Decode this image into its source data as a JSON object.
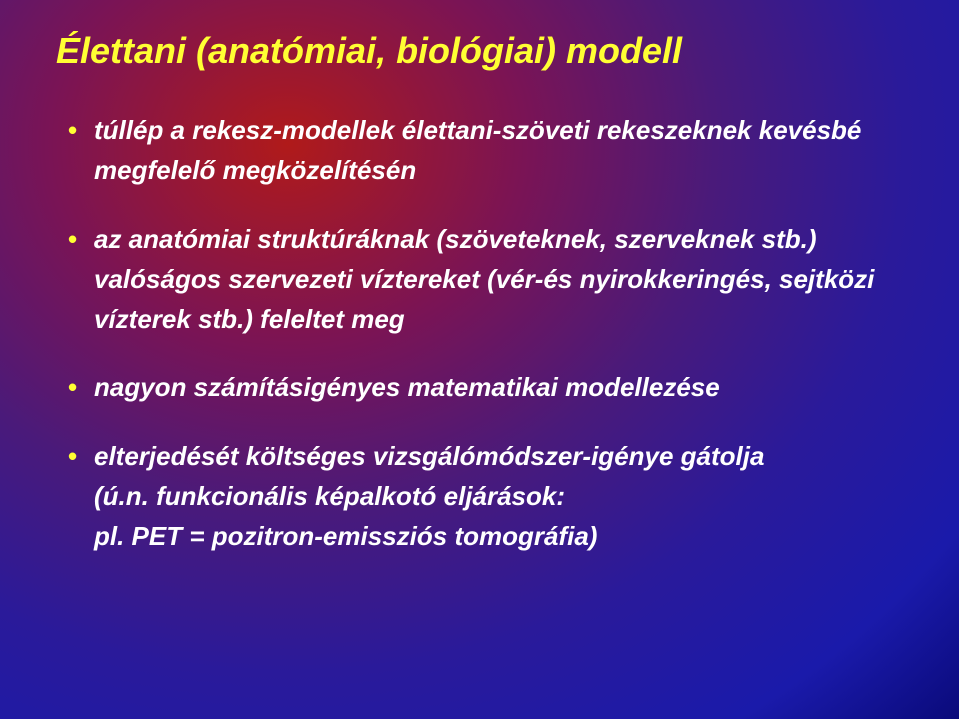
{
  "slide": {
    "title": "Élettani (anatómiai, biológiai) modell",
    "title_color": "#ffff33",
    "title_fontsize": 36,
    "text_color": "#ffffff",
    "bullet_color": "#ffff33",
    "body_fontsize": 26,
    "background": {
      "type": "radial-gradient",
      "colors": [
        "#b01a1a",
        "#7a1455",
        "#4a1a7a",
        "#2a1a9a",
        "#1a1aaa",
        "#0a0a7a"
      ]
    },
    "bullets": [
      {
        "text": "túllép a rekesz-modellek élettani-szöveti rekeszeknek kevésbé megfelelő megközelítésén"
      },
      {
        "text": "az anatómiai struktúráknak (szöveteknek, szerveknek stb.) valóságos szervezeti víztereket (vér-és nyirokkeringés, sejtközi vízterek stb.) feleltet meg"
      },
      {
        "text": "nagyon számításigényes matematikai modellezése"
      },
      {
        "text": "elterjedését költséges vizsgálómódszer-igénye gátolja",
        "sublines": [
          "(ú.n. funkcionális képalkotó eljárások:",
          "pl. PET = pozitron-emissziós tomográfia)"
        ]
      }
    ]
  }
}
